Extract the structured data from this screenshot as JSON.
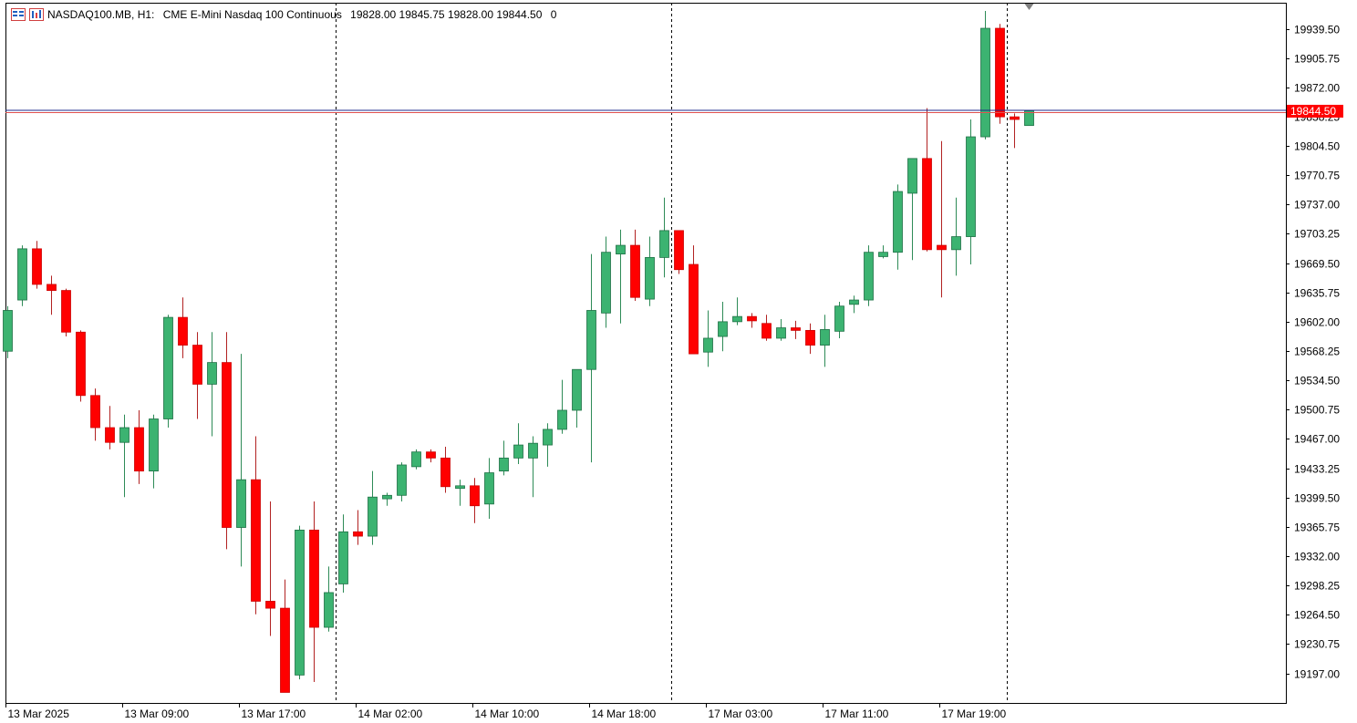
{
  "header": {
    "symbol": "NASDAQ100.MB, H1:",
    "description": "CME E-Mini Nasdaq 100 Continuous",
    "ohlc": "19828.00 19845.75 19828.00 19844.50",
    "volume": "0",
    "icons": [
      "chart-window-icon",
      "indicator-icon"
    ]
  },
  "price_tag": {
    "label": "19844.50",
    "color": "#ff0000"
  },
  "colors": {
    "up": "#3cb371",
    "down": "#ff0000",
    "wick_up": "#2e8b57",
    "wick_down": "#b22222",
    "bid_line": "#1c2a8c",
    "ask_line": "#e05050"
  },
  "chart_data": {
    "type": "candlestick",
    "timeframe": "H1",
    "y_ticks": [
      "19939.50",
      "19905.75",
      "19872.00",
      "19838.25",
      "19804.50",
      "19770.75",
      "19737.00",
      "19703.25",
      "19669.50",
      "19635.75",
      "19602.00",
      "19568.25",
      "19534.50",
      "19500.75",
      "19467.00",
      "19433.25",
      "19399.50",
      "19365.75",
      "19332.00",
      "19298.25",
      "19264.50",
      "19230.75",
      "19197.00"
    ],
    "ylim": [
      19175,
      19970
    ],
    "x_labels": [
      "13 Mar 2025",
      "13 Mar 09:00",
      "13 Mar 17:00",
      "14 Mar 02:00",
      "14 Mar 10:00",
      "14 Mar 18:00",
      "17 Mar 03:00",
      "17 Mar 11:00",
      "17 Mar 19:00"
    ],
    "x_label_bar_index": [
      0,
      8,
      16,
      24,
      32,
      40,
      48,
      56,
      64
    ],
    "session_separators_after_bar": [
      22,
      45,
      68
    ],
    "current_price": 19844.5,
    "candles": [
      {
        "o": 19568,
        "h": 19620,
        "l": 19560,
        "c": 19615
      },
      {
        "o": 19627,
        "h": 19690,
        "l": 19620,
        "c": 19686
      },
      {
        "o": 19686,
        "h": 19695,
        "l": 19640,
        "c": 19645
      },
      {
        "o": 19645,
        "h": 19655,
        "l": 19610,
        "c": 19638
      },
      {
        "o": 19638,
        "h": 19640,
        "l": 19585,
        "c": 19590
      },
      {
        "o": 19590,
        "h": 19592,
        "l": 19510,
        "c": 19517
      },
      {
        "o": 19517,
        "h": 19525,
        "l": 19465,
        "c": 19480
      },
      {
        "o": 19480,
        "h": 19505,
        "l": 19455,
        "c": 19463
      },
      {
        "o": 19463,
        "h": 19495,
        "l": 19400,
        "c": 19480
      },
      {
        "o": 19480,
        "h": 19500,
        "l": 19415,
        "c": 19430
      },
      {
        "o": 19430,
        "h": 19495,
        "l": 19410,
        "c": 19490
      },
      {
        "o": 19490,
        "h": 19610,
        "l": 19480,
        "c": 19607
      },
      {
        "o": 19607,
        "h": 19630,
        "l": 19560,
        "c": 19575
      },
      {
        "o": 19575,
        "h": 19590,
        "l": 19490,
        "c": 19530
      },
      {
        "o": 19530,
        "h": 19590,
        "l": 19470,
        "c": 19555
      },
      {
        "o": 19555,
        "h": 19590,
        "l": 19340,
        "c": 19365
      },
      {
        "o": 19365,
        "h": 19565,
        "l": 19320,
        "c": 19420
      },
      {
        "o": 19420,
        "h": 19470,
        "l": 19265,
        "c": 19280
      },
      {
        "o": 19280,
        "h": 19395,
        "l": 19240,
        "c": 19272
      },
      {
        "o": 19272,
        "h": 19305,
        "l": 19180,
        "c": 19175
      },
      {
        "o": 19195,
        "h": 19367,
        "l": 19190,
        "c": 19362
      },
      {
        "o": 19362,
        "h": 19395,
        "l": 19187,
        "c": 19250
      },
      {
        "o": 19250,
        "h": 19320,
        "l": 19245,
        "c": 19290
      },
      {
        "o": 19300,
        "h": 19380,
        "l": 19290,
        "c": 19360
      },
      {
        "o": 19360,
        "h": 19385,
        "l": 19345,
        "c": 19355
      },
      {
        "o": 19355,
        "h": 19430,
        "l": 19345,
        "c": 19400
      },
      {
        "o": 19398,
        "h": 19405,
        "l": 19390,
        "c": 19402
      },
      {
        "o": 19402,
        "h": 19440,
        "l": 19395,
        "c": 19437
      },
      {
        "o": 19435,
        "h": 19455,
        "l": 19432,
        "c": 19452
      },
      {
        "o": 19452,
        "h": 19455,
        "l": 19440,
        "c": 19445
      },
      {
        "o": 19445,
        "h": 19458,
        "l": 19405,
        "c": 19412
      },
      {
        "o": 19410,
        "h": 19420,
        "l": 19390,
        "c": 19413
      },
      {
        "o": 19413,
        "h": 19422,
        "l": 19370,
        "c": 19390
      },
      {
        "o": 19392,
        "h": 19445,
        "l": 19375,
        "c": 19428
      },
      {
        "o": 19430,
        "h": 19465,
        "l": 19425,
        "c": 19445
      },
      {
        "o": 19445,
        "h": 19485,
        "l": 19438,
        "c": 19460
      },
      {
        "o": 19445,
        "h": 19470,
        "l": 19400,
        "c": 19462
      },
      {
        "o": 19460,
        "h": 19485,
        "l": 19435,
        "c": 19478
      },
      {
        "o": 19478,
        "h": 19535,
        "l": 19473,
        "c": 19500
      },
      {
        "o": 19500,
        "h": 19540,
        "l": 19480,
        "c": 19547
      },
      {
        "o": 19547,
        "h": 19680,
        "l": 19440,
        "c": 19615
      },
      {
        "o": 19612,
        "h": 19700,
        "l": 19595,
        "c": 19682
      },
      {
        "o": 19680,
        "h": 19708,
        "l": 19600,
        "c": 19690
      },
      {
        "o": 19690,
        "h": 19708,
        "l": 19626,
        "c": 19630
      },
      {
        "o": 19628,
        "h": 19700,
        "l": 19620,
        "c": 19676
      },
      {
        "o": 19676,
        "h": 19745,
        "l": 19653,
        "c": 19707
      },
      {
        "o": 19707,
        "h": 19707,
        "l": 19657,
        "c": 19662
      },
      {
        "o": 19668,
        "h": 19690,
        "l": 19565,
        "c": 19565
      },
      {
        "o": 19567,
        "h": 19615,
        "l": 19550,
        "c": 19583
      },
      {
        "o": 19585,
        "h": 19625,
        "l": 19568,
        "c": 19602
      },
      {
        "o": 19602,
        "h": 19630,
        "l": 19598,
        "c": 19608
      },
      {
        "o": 19608,
        "h": 19612,
        "l": 19595,
        "c": 19603
      },
      {
        "o": 19600,
        "h": 19610,
        "l": 19580,
        "c": 19583
      },
      {
        "o": 19583,
        "h": 19605,
        "l": 19580,
        "c": 19595
      },
      {
        "o": 19595,
        "h": 19603,
        "l": 19582,
        "c": 19592
      },
      {
        "o": 19592,
        "h": 19600,
        "l": 19565,
        "c": 19575
      },
      {
        "o": 19575,
        "h": 19610,
        "l": 19550,
        "c": 19593
      },
      {
        "o": 19591,
        "h": 19625,
        "l": 19583,
        "c": 19620
      },
      {
        "o": 19622,
        "h": 19632,
        "l": 19612,
        "c": 19627
      },
      {
        "o": 19627,
        "h": 19690,
        "l": 19620,
        "c": 19682
      },
      {
        "o": 19677,
        "h": 19690,
        "l": 19675,
        "c": 19682
      },
      {
        "o": 19682,
        "h": 19760,
        "l": 19662,
        "c": 19752
      },
      {
        "o": 19750,
        "h": 19790,
        "l": 19673,
        "c": 19790
      },
      {
        "o": 19790,
        "h": 19848,
        "l": 19683,
        "c": 19685
      },
      {
        "o": 19690,
        "h": 19810,
        "l": 19630,
        "c": 19685
      },
      {
        "o": 19685,
        "h": 19745,
        "l": 19655,
        "c": 19700
      },
      {
        "o": 19700,
        "h": 19835,
        "l": 19668,
        "c": 19815
      },
      {
        "o": 19815,
        "h": 19960,
        "l": 19812,
        "c": 19940
      },
      {
        "o": 19940,
        "h": 19945,
        "l": 19830,
        "c": 19838
      },
      {
        "o": 19838,
        "h": 19842,
        "l": 19802,
        "c": 19835
      },
      {
        "o": 19828,
        "h": 19846,
        "l": 19828,
        "c": 19845
      }
    ]
  }
}
